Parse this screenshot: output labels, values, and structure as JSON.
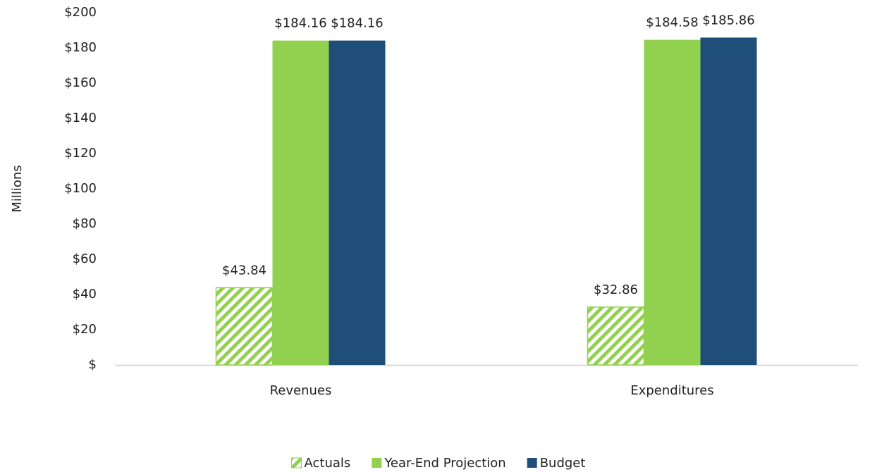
{
  "chart_data": {
    "type": "bar",
    "y_label": "Millions",
    "categories": [
      "Revenues",
      "Expenditures"
    ],
    "series": [
      {
        "name": "Actuals",
        "color": "#92d050",
        "pattern": "hatch",
        "values": [
          43.84,
          32.86
        ],
        "value_labels": [
          "$43.84",
          "$32.86"
        ]
      },
      {
        "name": "Year-End Projection",
        "color": "#92d050",
        "values": [
          184.16,
          184.58
        ],
        "value_labels": [
          "$184.16",
          "$184.58"
        ]
      },
      {
        "name": "Budget",
        "color": "#1f4e79",
        "values": [
          184.16,
          185.86
        ],
        "value_labels": [
          "$184.16",
          "$185.86"
        ]
      }
    ],
    "ylim": [
      0,
      200
    ],
    "yticks": [
      {
        "value": 0,
        "label": "$"
      },
      {
        "value": 20,
        "label": "$20"
      },
      {
        "value": 40,
        "label": "$40"
      },
      {
        "value": 60,
        "label": "$60"
      },
      {
        "value": 80,
        "label": "$80"
      },
      {
        "value": 100,
        "label": "$100"
      },
      {
        "value": 120,
        "label": "$120"
      },
      {
        "value": 140,
        "label": "$140"
      },
      {
        "value": 160,
        "label": "$160"
      },
      {
        "value": 180,
        "label": "$180"
      },
      {
        "value": 200,
        "label": "$200"
      }
    ],
    "grid": false,
    "legend": "bottom"
  }
}
